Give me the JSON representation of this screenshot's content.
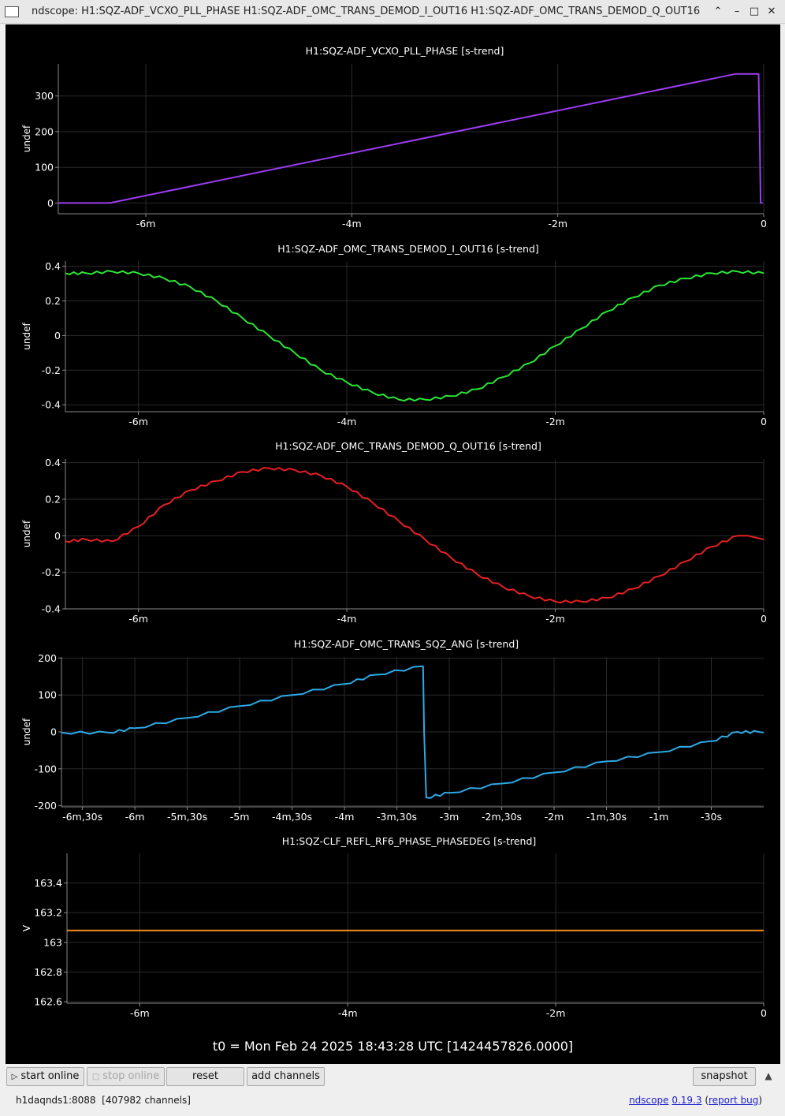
{
  "window": {
    "title": "ndscope: H1:SQZ-ADF_VCXO_PLL_PHASE H1:SQZ-ADF_OMC_TRANS_DEMOD_I_OUT16 H1:SQZ-ADF_OMC_TRANS_DEMOD_Q_OUT16",
    "controls": {
      "minimize_chevron": "⌃",
      "minimize": "–",
      "maximize": "□",
      "close": "✕"
    }
  },
  "t0_label": "t0 = Mon Feb 24 2025 18:43:28 UTC [1424457826.0000]",
  "buttons": {
    "start_online": "start online",
    "stop_online": "stop online",
    "reset": "reset",
    "add_channels": "add channels",
    "snapshot": "snapshot"
  },
  "status": {
    "server": "h1daqnds1:8088  [407982 channels]",
    "version_link": "ndscope",
    "version": "0.19.3",
    "report_bug": "report bug"
  },
  "chart_data": [
    {
      "type": "line",
      "title": "H1:SQZ-ADF_VCXO_PLL_PHASE [s-trend]",
      "ylabel": "undef",
      "color": "#9b3df2",
      "xlim": [
        -6.85,
        0
      ],
      "ylim": [
        -30,
        390
      ],
      "yticks": [
        0,
        100,
        200,
        300
      ],
      "ytick_labels": [
        "0",
        "100",
        "200",
        "300"
      ],
      "xticks": [
        -6,
        -4,
        -2,
        0
      ],
      "xtick_labels": [
        "-6m",
        "-4m",
        "-2m",
        "0"
      ],
      "grid": true,
      "x": [
        -6.85,
        -6.35,
        -0.27,
        -0.05,
        -0.04,
        -0.03,
        -0.01
      ],
      "y": [
        0,
        0,
        362,
        362,
        200,
        0,
        0
      ]
    },
    {
      "type": "line",
      "title": "H1:SQZ-ADF_OMC_TRANS_DEMOD_I_OUT16 [s-trend]",
      "ylabel": "undef",
      "color": "#29e635",
      "xlim": [
        -6.7,
        0
      ],
      "ylim": [
        -0.44,
        0.43
      ],
      "yticks": [
        -0.4,
        -0.2,
        0,
        0.2,
        0.4
      ],
      "ytick_labels": [
        "-0.4",
        "-0.2",
        "0",
        "0.2",
        "0.4"
      ],
      "xticks": [
        -6,
        -4,
        -2,
        0
      ],
      "xtick_labels": [
        "-6m",
        "-4m",
        "-2m",
        "0"
      ],
      "grid": true,
      "x": [
        -6.7,
        -6.5,
        -6.25,
        -6.0,
        -5.75,
        -5.5,
        -5.25,
        -5.0,
        -4.75,
        -4.5,
        -4.25,
        -4.0,
        -3.75,
        -3.5,
        -3.25,
        -3.0,
        -2.75,
        -2.5,
        -2.25,
        -2.0,
        -1.75,
        -1.5,
        -1.25,
        -1.0,
        -0.75,
        -0.5,
        -0.25,
        0
      ],
      "y": [
        0.36,
        0.36,
        0.37,
        0.36,
        0.33,
        0.28,
        0.2,
        0.1,
        0.0,
        -0.1,
        -0.2,
        -0.27,
        -0.33,
        -0.37,
        -0.37,
        -0.35,
        -0.31,
        -0.24,
        -0.16,
        -0.06,
        0.04,
        0.14,
        0.22,
        0.29,
        0.33,
        0.36,
        0.37,
        0.36
      ]
    },
    {
      "type": "line",
      "title": "H1:SQZ-ADF_OMC_TRANS_DEMOD_Q_OUT16 [s-trend]",
      "ylabel": "undef",
      "color": "#e81f22",
      "xlim": [
        -6.7,
        0
      ],
      "ylim": [
        -0.4,
        0.42
      ],
      "yticks": [
        -0.4,
        -0.2,
        0,
        0.2,
        0.4
      ],
      "ytick_labels": [
        "-0.4",
        "-0.2",
        "0",
        "0.2",
        "0.4"
      ],
      "xticks": [
        -6,
        -4,
        -2,
        0
      ],
      "xtick_labels": [
        "-6m",
        "-4m",
        "-2m",
        "0"
      ],
      "grid": true,
      "x": [
        -6.7,
        -6.5,
        -6.25,
        -6.0,
        -5.75,
        -5.5,
        -5.25,
        -5.0,
        -4.75,
        -4.5,
        -4.25,
        -4.0,
        -3.75,
        -3.5,
        -3.25,
        -3.0,
        -2.75,
        -2.5,
        -2.25,
        -2.0,
        -1.75,
        -1.5,
        -1.25,
        -1.0,
        -0.75,
        -0.5,
        -0.25,
        -0.15,
        0
      ],
      "y": [
        -0.03,
        -0.02,
        -0.03,
        0.05,
        0.17,
        0.25,
        0.3,
        0.35,
        0.37,
        0.36,
        0.33,
        0.27,
        0.18,
        0.08,
        -0.02,
        -0.12,
        -0.21,
        -0.28,
        -0.33,
        -0.36,
        -0.36,
        -0.34,
        -0.29,
        -0.22,
        -0.14,
        -0.06,
        0.0,
        0.0,
        -0.02
      ]
    },
    {
      "type": "line",
      "title": "H1:SQZ-ADF_OMC_TRANS_SQZ_ANG [s-trend]",
      "ylabel": "undef",
      "color": "#2ea8e6",
      "xlim": [
        -6.7,
        0
      ],
      "ylim": [
        -203,
        203
      ],
      "yticks": [
        -200,
        -100,
        0,
        100,
        200
      ],
      "ytick_labels": [
        "-200",
        "-100",
        "0",
        "100",
        "200"
      ],
      "xticks": [
        -6.5,
        -6,
        -5.5,
        -5,
        -4.5,
        -4,
        -3.5,
        -3,
        -2.5,
        -2,
        -1.5,
        -1,
        -0.5
      ],
      "xtick_labels": [
        "-6m,30s",
        "-6m",
        "-5m,30s",
        "-5m",
        "-4m,30s",
        "-4m",
        "-3m,30s",
        "-3m",
        "-2m,30s",
        "-2m",
        "-1m,30s",
        "-1m",
        "-30s"
      ],
      "grid": true,
      "x": [
        -6.7,
        -6.25,
        -6.0,
        -5.5,
        -5.0,
        -4.5,
        -4.0,
        -3.7,
        -3.25,
        -3.24,
        -3.22,
        -3.0,
        -2.5,
        -2.0,
        -1.5,
        -1.0,
        -0.5,
        -0.25,
        -0.05,
        0
      ],
      "y": [
        -2,
        -2,
        10,
        38,
        70,
        100,
        130,
        155,
        178,
        0,
        -178,
        -165,
        -140,
        -110,
        -80,
        -55,
        -25,
        0,
        0,
        -2
      ]
    },
    {
      "type": "line",
      "title": "H1:SQZ-CLF_REFL_RF6_PHASE_PHASEDEG [s-trend]",
      "ylabel": "V",
      "color": "#f28c1f",
      "xlim": [
        -6.7,
        0
      ],
      "ylim": [
        162.59,
        163.6
      ],
      "yticks": [
        162.6,
        162.8,
        163,
        163.2,
        163.4
      ],
      "ytick_labels": [
        "162.6",
        "162.8",
        "163",
        "163.2",
        "163.4"
      ],
      "xticks": [
        -6,
        -4,
        -2,
        0
      ],
      "xtick_labels": [
        "-6m",
        "-4m",
        "-2m",
        "0"
      ],
      "grid": true,
      "x": [
        -6.7,
        0
      ],
      "y": [
        163.08,
        163.08
      ]
    }
  ]
}
